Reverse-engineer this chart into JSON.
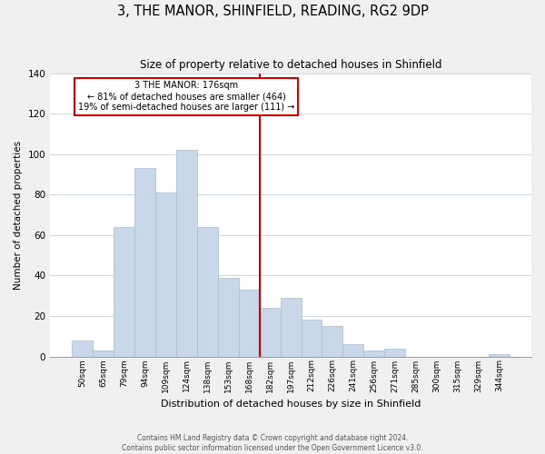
{
  "title": "3, THE MANOR, SHINFIELD, READING, RG2 9DP",
  "subtitle": "Size of property relative to detached houses in Shinfield",
  "xlabel": "Distribution of detached houses by size in Shinfield",
  "ylabel": "Number of detached properties",
  "footer_line1": "Contains HM Land Registry data © Crown copyright and database right 2024.",
  "footer_line2": "Contains public sector information licensed under the Open Government Licence v3.0.",
  "bin_labels": [
    "50sqm",
    "65sqm",
    "79sqm",
    "94sqm",
    "109sqm",
    "124sqm",
    "138sqm",
    "153sqm",
    "168sqm",
    "182sqm",
    "197sqm",
    "212sqm",
    "226sqm",
    "241sqm",
    "256sqm",
    "271sqm",
    "285sqm",
    "300sqm",
    "315sqm",
    "329sqm",
    "344sqm"
  ],
  "bar_heights": [
    8,
    3,
    64,
    93,
    81,
    102,
    64,
    39,
    33,
    24,
    29,
    18,
    15,
    6,
    3,
    4,
    0,
    0,
    0,
    0,
    1
  ],
  "bar_color": "#c8d8e8",
  "bar_edge_color": "#a8bece",
  "highlight_bin_index": 9,
  "highlight_color": "#cc0000",
  "annotation_title": "3 THE MANOR: 176sqm",
  "annotation_line1": "← 81% of detached houses are smaller (464)",
  "annotation_line2": "19% of semi-detached houses are larger (111) →",
  "annotation_box_color": "#ffffff",
  "annotation_box_edge": "#cc0000",
  "ylim": [
    0,
    140
  ],
  "yticks": [
    0,
    20,
    40,
    60,
    80,
    100,
    120,
    140
  ],
  "background_color": "#f0f0f0",
  "plot_background_color": "#ffffff",
  "grid_color": "#d0d8e0"
}
